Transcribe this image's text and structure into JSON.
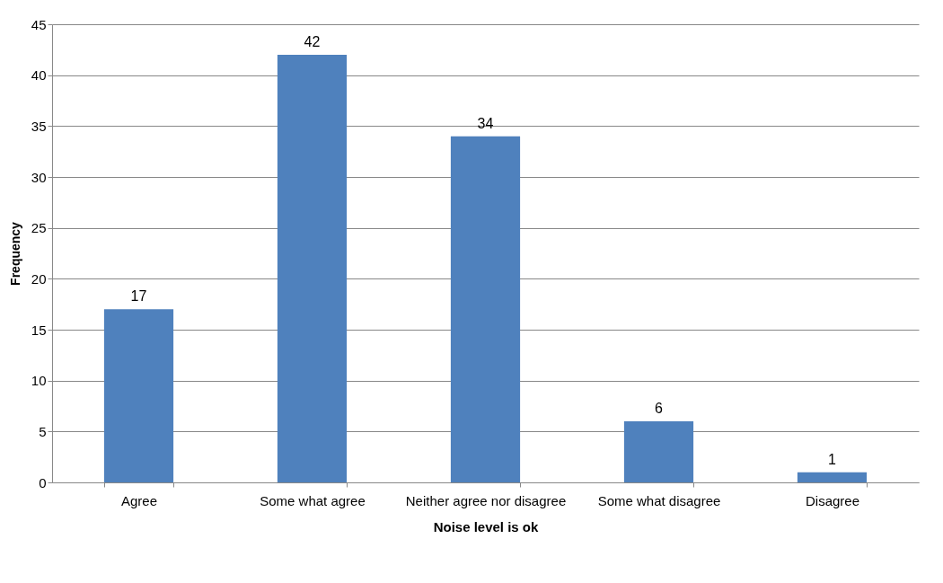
{
  "chart_data": {
    "type": "bar",
    "xlabel": "Noise level is ok",
    "ylabel": "Frequency",
    "categories": [
      "Agree",
      "Some what agree",
      "Neither agree nor disagree",
      "Some what disagree",
      "Disagree"
    ],
    "values": [
      17,
      42,
      34,
      6,
      1
    ],
    "color": "#4f81bd",
    "ylim": [
      0,
      45
    ],
    "yticks": [
      0,
      5,
      10,
      15,
      20,
      25,
      30,
      35,
      40,
      45
    ],
    "grid": "y",
    "data_labels": true
  }
}
